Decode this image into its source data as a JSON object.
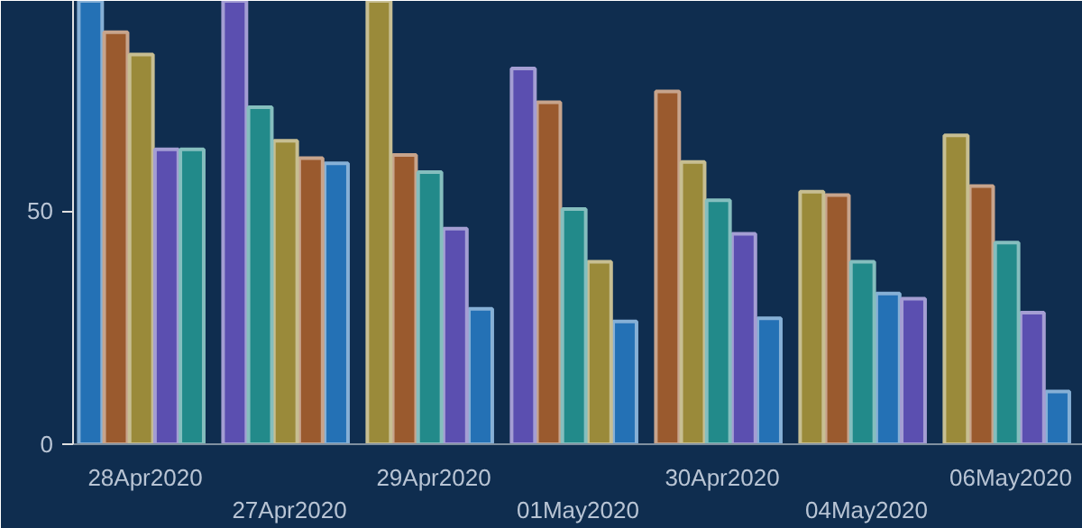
{
  "chart_data": {
    "type": "bar",
    "categories": [
      "28Apr2020",
      "27Apr2020",
      "29Apr2020",
      "01May2020",
      "30Apr2020",
      "04May2020",
      "06May2020"
    ],
    "series": [
      {
        "color": "#2471b5",
        "values": [
          95,
          60.2,
          29,
          26.3,
          27,
          32.3,
          11.3
        ]
      },
      {
        "color": "#9a5a2e",
        "values": [
          88.3,
          61.3,
          62,
          73.3,
          75.6,
          53.4,
          55.3
        ]
      },
      {
        "color": "#9a8a3a",
        "values": [
          83.5,
          65,
          95,
          39.1,
          60.5,
          54.1,
          66.2
        ]
      },
      {
        "color": "#5b4fb0",
        "values": [
          63.2,
          95,
          46.2,
          80.5,
          45.1,
          31.2,
          28.2
        ]
      },
      {
        "color": "#228a8a",
        "values": [
          63.2,
          72.2,
          58.3,
          50.4,
          52.3,
          39.1,
          43.2
        ]
      }
    ],
    "ylim": [
      0,
      95
    ],
    "yticks": [
      0,
      50
    ],
    "grid": false
  }
}
